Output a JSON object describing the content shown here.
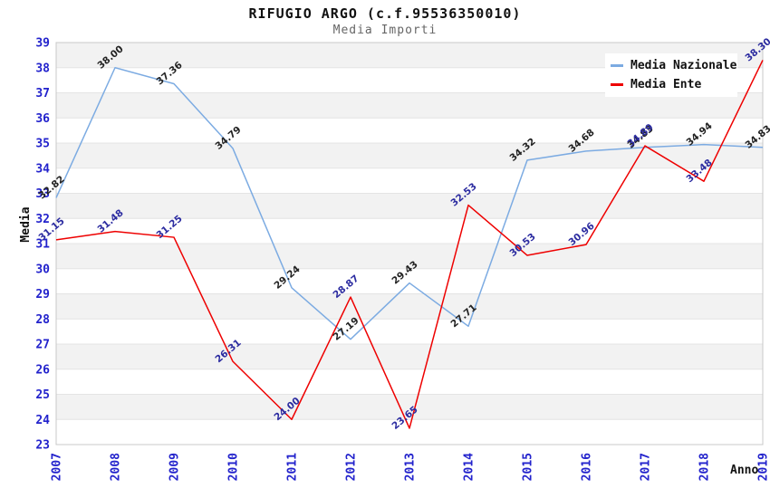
{
  "header": {
    "title": "RIFUGIO ARGO (c.f.95536350010)",
    "subtitle": "Media Importi"
  },
  "legend": {
    "items": [
      {
        "label": "Media Nazionale",
        "color": "#7cabe2"
      },
      {
        "label": "Media Ente",
        "color": "#ee0000"
      }
    ]
  },
  "chart_data": {
    "type": "line",
    "title": "RIFUGIO ARGO (c.f.95536350010)",
    "subtitle": "Media Importi",
    "xlabel": "Anno",
    "ylabel": "Media",
    "ylim": [
      23,
      39
    ],
    "y_tick_step": 1,
    "grid": true,
    "legend_position": "top-right",
    "categories": [
      "2007",
      "2008",
      "2009",
      "2010",
      "2011",
      "2012",
      "2013",
      "2014",
      "2015",
      "2016",
      "2017",
      "2018",
      "2019"
    ],
    "series": [
      {
        "name": "Media Nazionale",
        "color": "#7cabe2",
        "label_color": "#222222",
        "values": [
          32.82,
          38.0,
          37.36,
          34.79,
          29.24,
          27.19,
          29.43,
          27.71,
          34.32,
          34.68,
          34.83,
          34.94,
          34.83
        ]
      },
      {
        "name": "Media Ente",
        "color": "#ee0000",
        "label_color": "#2b2ba0",
        "values": [
          31.15,
          31.48,
          31.25,
          26.31,
          24.0,
          28.87,
          23.65,
          32.53,
          30.53,
          30.96,
          34.89,
          33.48,
          38.3
        ]
      }
    ],
    "colors": {
      "tick_label": "#2222cc",
      "band_gray": "#f2f2f2",
      "grid_line": "#e4e4e4",
      "plot_border": "#c8c8c8",
      "axis_title": "#111111"
    }
  }
}
